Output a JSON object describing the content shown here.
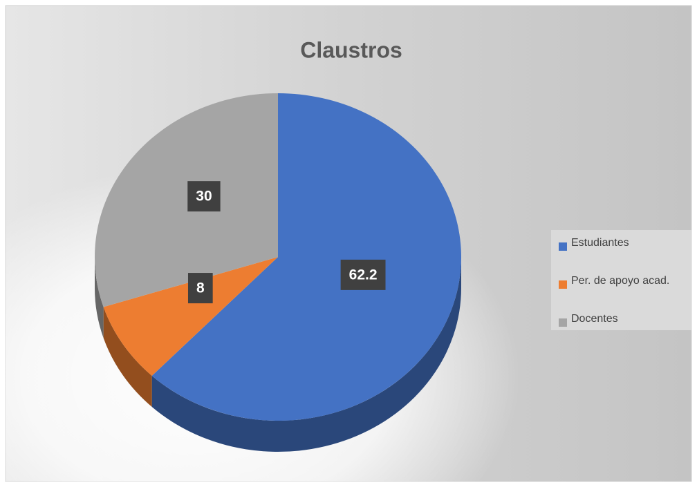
{
  "chart_data": {
    "type": "pie",
    "title": "Claustros",
    "categories": [
      "Estudiantes",
      "Per. de apoyo acad.",
      "Docentes"
    ],
    "values": [
      62.2,
      8,
      30
    ],
    "colors": [
      "#4472c4",
      "#ed7d31",
      "#a5a5a5"
    ],
    "legend": "right"
  }
}
